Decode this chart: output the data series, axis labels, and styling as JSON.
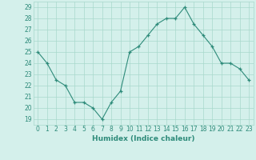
{
  "x": [
    0,
    1,
    2,
    3,
    4,
    5,
    6,
    7,
    8,
    9,
    10,
    11,
    12,
    13,
    14,
    15,
    16,
    17,
    18,
    19,
    20,
    21,
    22,
    23
  ],
  "y": [
    25,
    24,
    22.5,
    22,
    20.5,
    20.5,
    20,
    19,
    20.5,
    21.5,
    25,
    25.5,
    26.5,
    27.5,
    28,
    28,
    29,
    27.5,
    26.5,
    25.5,
    24,
    24,
    23.5,
    22.5
  ],
  "xlabel": "Humidex (Indice chaleur)",
  "ylim_min": 18.5,
  "ylim_max": 29.5,
  "xlim_min": -0.5,
  "xlim_max": 23.5,
  "yticks": [
    19,
    20,
    21,
    22,
    23,
    24,
    25,
    26,
    27,
    28,
    29
  ],
  "xticks": [
    0,
    1,
    2,
    3,
    4,
    5,
    6,
    7,
    8,
    9,
    10,
    11,
    12,
    13,
    14,
    15,
    16,
    17,
    18,
    19,
    20,
    21,
    22,
    23
  ],
  "line_color": "#2e8b7a",
  "marker": "+",
  "bg_color": "#d4f0eb",
  "grid_color": "#a8d8cc",
  "xlabel_fontsize": 6.5,
  "tick_fontsize": 5.5,
  "linewidth": 0.8,
  "markersize": 3.5,
  "markeredgewidth": 0.9
}
